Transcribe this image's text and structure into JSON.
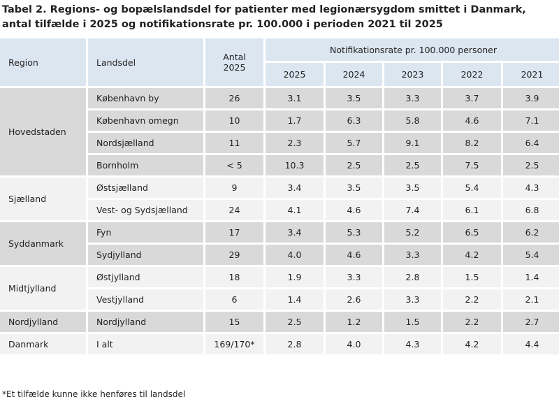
{
  "title": "Tabel 2. Regions- og bopælslandsdel for patienter med legionærsygdom smittet i Danmark, antal tilfælde i 2025 og notifikationsrate pr. 100.000 i perioden 2021 til 2025",
  "table": {
    "headers": {
      "region": "Region",
      "landsdel": "Landsdel",
      "antal": "Antal\n2025",
      "rate_group": "Notifikationsrate pr. 100.000 personer",
      "years": [
        "2025",
        "2024",
        "2023",
        "2022",
        "2021"
      ]
    },
    "regions": [
      {
        "name": "Hovedstaden",
        "rows": [
          {
            "landsdel": "København by",
            "antal": "26",
            "rates": [
              "3.1",
              "3.5",
              "3.3",
              "3.7",
              "3.9"
            ]
          },
          {
            "landsdel": "København omegn",
            "antal": "10",
            "rates": [
              "1.7",
              "6.3",
              "5.8",
              "4.6",
              "7.1"
            ]
          },
          {
            "landsdel": "Nordsjælland",
            "antal": "11",
            "rates": [
              "2.3",
              "5.7",
              "9.1",
              "8.2",
              "6.4"
            ]
          },
          {
            "landsdel": "Bornholm",
            "antal": "< 5",
            "rates": [
              "10.3",
              "2.5",
              "2.5",
              "7.5",
              "2.5"
            ]
          }
        ]
      },
      {
        "name": "Sjælland",
        "rows": [
          {
            "landsdel": "Østsjælland",
            "antal": "9",
            "rates": [
              "3.4",
              "3.5",
              "3.5",
              "5.4",
              "4.3"
            ]
          },
          {
            "landsdel": "Vest- og Sydsjælland",
            "antal": "24",
            "rates": [
              "4.1",
              "4.6",
              "7.4",
              "6.1",
              "6.8"
            ]
          }
        ]
      },
      {
        "name": "Syddanmark",
        "rows": [
          {
            "landsdel": "Fyn",
            "antal": "17",
            "rates": [
              "3.4",
              "5.3",
              "5.2",
              "6.5",
              "6.2"
            ]
          },
          {
            "landsdel": "Sydjylland",
            "antal": "29",
            "rates": [
              "4.0",
              "4.6",
              "3.3",
              "4.2",
              "5.4"
            ]
          }
        ]
      },
      {
        "name": "Midtjylland",
        "rows": [
          {
            "landsdel": "Østjylland",
            "antal": "18",
            "rates": [
              "1.9",
              "3.3",
              "2.8",
              "1.5",
              "1.4"
            ]
          },
          {
            "landsdel": "Vestjylland",
            "antal": "6",
            "rates": [
              "1.4",
              "2.6",
              "3.3",
              "2.2",
              "2.1"
            ]
          }
        ]
      },
      {
        "name": "Nordjylland",
        "rows": [
          {
            "landsdel": "Nordjylland",
            "antal": "15",
            "rates": [
              "2.5",
              "1.2",
              "1.5",
              "2.2",
              "2.7"
            ]
          }
        ]
      },
      {
        "name": "Danmark",
        "rows": [
          {
            "landsdel": "I alt",
            "antal": "169/170*",
            "rates": [
              "2.8",
              "4.0",
              "4.3",
              "4.2",
              "4.4"
            ]
          }
        ]
      }
    ]
  },
  "footnote": "*Et tilfælde kunne ikke henføres til landsdel"
}
